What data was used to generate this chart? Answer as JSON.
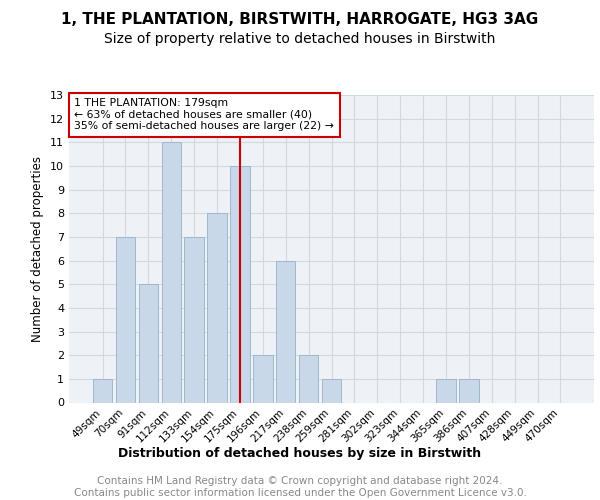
{
  "title": "1, THE PLANTATION, BIRSTWITH, HARROGATE, HG3 3AG",
  "subtitle": "Size of property relative to detached houses in Birstwith",
  "xlabel": "Distribution of detached houses by size in Birstwith",
  "ylabel": "Number of detached properties",
  "bar_labels": [
    "49sqm",
    "70sqm",
    "91sqm",
    "112sqm",
    "133sqm",
    "154sqm",
    "175sqm",
    "196sqm",
    "217sqm",
    "238sqm",
    "259sqm",
    "281sqm",
    "302sqm",
    "323sqm",
    "344sqm",
    "365sqm",
    "386sqm",
    "407sqm",
    "428sqm",
    "449sqm",
    "470sqm"
  ],
  "bar_values": [
    1,
    7,
    5,
    11,
    7,
    8,
    10,
    2,
    6,
    2,
    1,
    0,
    0,
    0,
    0,
    1,
    1,
    0,
    0,
    0,
    0
  ],
  "bar_color": "#c8d8e8",
  "bar_edge_color": "#a0b8cc",
  "reference_line_index": 6,
  "reference_line_color": "#cc0000",
  "annotation_text": "1 THE PLANTATION: 179sqm\n← 63% of detached houses are smaller (40)\n35% of semi-detached houses are larger (22) →",
  "annotation_box_color": "#ffffff",
  "annotation_box_edge_color": "#cc0000",
  "ylim": [
    0,
    13
  ],
  "yticks": [
    0,
    1,
    2,
    3,
    4,
    5,
    6,
    7,
    8,
    9,
    10,
    11,
    12,
    13
  ],
  "grid_color": "#d0d8e0",
  "background_color": "#eef2f7",
  "footer_text": "Contains HM Land Registry data © Crown copyright and database right 2024.\nContains public sector information licensed under the Open Government Licence v3.0.",
  "title_fontsize": 11,
  "subtitle_fontsize": 10,
  "axis_label_fontsize": 8.5,
  "tick_fontsize": 7.5,
  "footer_fontsize": 7.5,
  "xlabel_fontsize": 9
}
